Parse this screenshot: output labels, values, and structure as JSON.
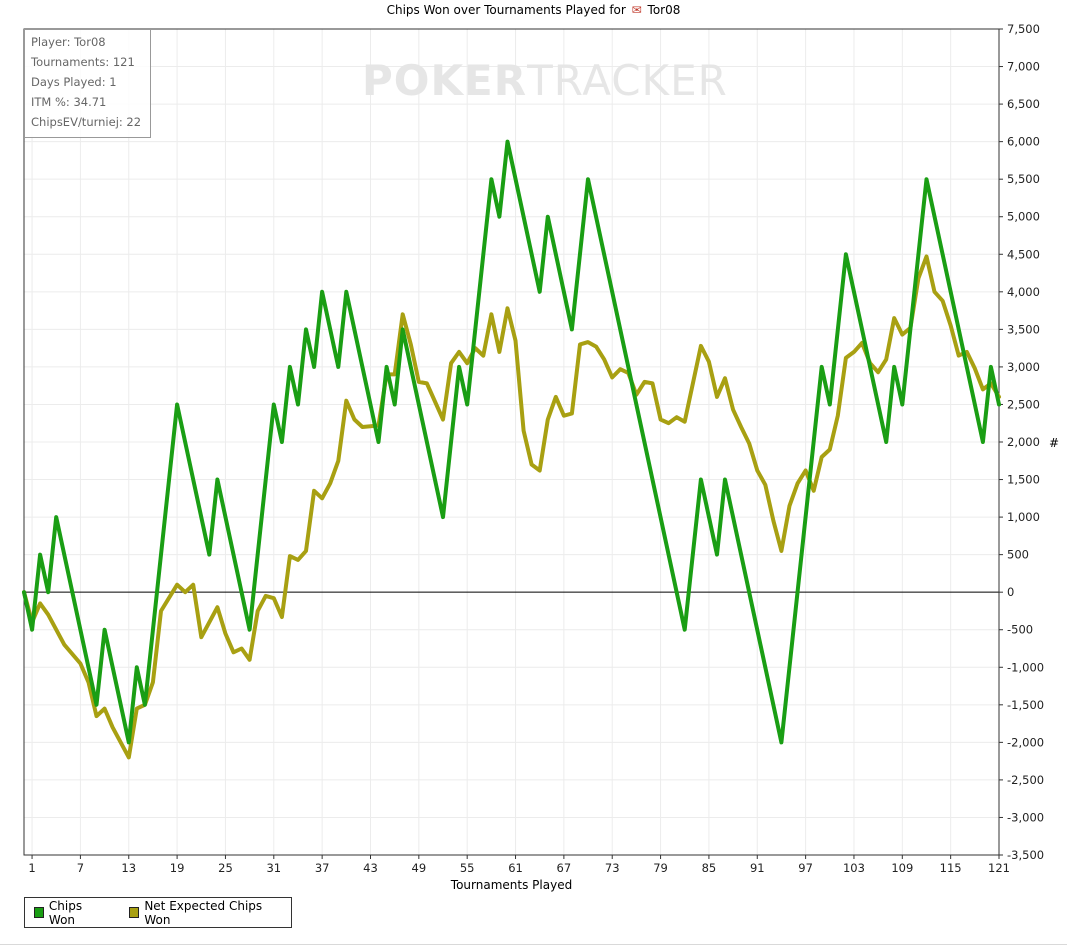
{
  "title": {
    "prefix": "Chips Won over Tournaments Played for",
    "player": "Tor08"
  },
  "stats_box": {
    "player": "Player: Tor08",
    "tournaments": "Tournaments: 121",
    "days": "Days Played: 1",
    "itm": "ITM %: 34.71",
    "chipsev": "ChipsEV/turniej: 22"
  },
  "watermark": {
    "part1": "POKER",
    "part2": "TRACKER"
  },
  "chart_data": {
    "type": "line",
    "xlabel": "Tournaments Played",
    "ylabel": "#",
    "xlim": [
      0,
      121
    ],
    "ylim": [
      -3500,
      7500
    ],
    "x_ticks": [
      1,
      7,
      13,
      19,
      25,
      31,
      37,
      43,
      49,
      55,
      61,
      67,
      73,
      79,
      85,
      91,
      97,
      103,
      109,
      115,
      121
    ],
    "y_ticks": [
      -3500,
      -3000,
      -2500,
      -2000,
      -1500,
      -1000,
      -500,
      0,
      500,
      1000,
      1500,
      2000,
      2500,
      3000,
      3500,
      4000,
      4500,
      5000,
      5500,
      6000,
      6500,
      7000,
      7500
    ],
    "y_tick_labels": [
      "-3,500",
      "-3,000",
      "-2,500",
      "-2,000",
      "-1,500",
      "-1,000",
      "-500",
      "0",
      "500",
      "1,000",
      "1,500",
      "2,000",
      "2,500",
      "3,000",
      "3,500",
      "4,000",
      "4,500",
      "5,000",
      "5,500",
      "6,000",
      "6,500",
      "7,000",
      "7,500"
    ],
    "grid": true,
    "legend_position": "bottom-left",
    "series": [
      {
        "name": "Chips Won",
        "color": "#1a9e14",
        "points": [
          [
            0,
            0
          ],
          [
            1,
            -500
          ],
          [
            2,
            500
          ],
          [
            3,
            0
          ],
          [
            4,
            1000
          ],
          [
            9,
            -1500
          ],
          [
            10,
            -500
          ],
          [
            13,
            -2000
          ],
          [
            14,
            -1000
          ],
          [
            15,
            -1500
          ],
          [
            19,
            2500
          ],
          [
            23,
            500
          ],
          [
            24,
            1500
          ],
          [
            28,
            -500
          ],
          [
            31,
            2500
          ],
          [
            32,
            2000
          ],
          [
            33,
            3000
          ],
          [
            34,
            2500
          ],
          [
            35,
            3500
          ],
          [
            36,
            3000
          ],
          [
            37,
            4000
          ],
          [
            39,
            3000
          ],
          [
            40,
            4000
          ],
          [
            44,
            2000
          ],
          [
            45,
            3000
          ],
          [
            46,
            2500
          ],
          [
            47,
            3500
          ],
          [
            52,
            1000
          ],
          [
            54,
            3000
          ],
          [
            55,
            2500
          ],
          [
            58,
            5500
          ],
          [
            59,
            5000
          ],
          [
            60,
            6000
          ],
          [
            64,
            4000
          ],
          [
            65,
            5000
          ],
          [
            68,
            3500
          ],
          [
            70,
            5500
          ],
          [
            82,
            -500
          ],
          [
            84,
            1500
          ],
          [
            86,
            500
          ],
          [
            87,
            1500
          ],
          [
            94,
            -2000
          ],
          [
            99,
            3000
          ],
          [
            100,
            2500
          ],
          [
            102,
            4500
          ],
          [
            107,
            2000
          ],
          [
            108,
            3000
          ],
          [
            109,
            2500
          ],
          [
            112,
            5500
          ],
          [
            119,
            2000
          ],
          [
            120,
            3000
          ],
          [
            121,
            2500
          ]
        ]
      },
      {
        "name": "Net Expected Chips Won",
        "color": "#a8a012",
        "points": [
          [
            0,
            0
          ],
          [
            1,
            -400
          ],
          [
            2,
            -150
          ],
          [
            3,
            -300
          ],
          [
            5,
            -700
          ],
          [
            7,
            -950
          ],
          [
            8,
            -1200
          ],
          [
            9,
            -1650
          ],
          [
            10,
            -1550
          ],
          [
            11,
            -1800
          ],
          [
            13,
            -2200
          ],
          [
            14,
            -1550
          ],
          [
            15,
            -1500
          ],
          [
            16,
            -1200
          ],
          [
            17,
            -250
          ],
          [
            19,
            100
          ],
          [
            20,
            0
          ],
          [
            21,
            100
          ],
          [
            22,
            -600
          ],
          [
            24,
            -200
          ],
          [
            25,
            -550
          ],
          [
            26,
            -800
          ],
          [
            27,
            -750
          ],
          [
            28,
            -900
          ],
          [
            29,
            -250
          ],
          [
            30,
            -50
          ],
          [
            31,
            -80
          ],
          [
            32,
            -330
          ],
          [
            33,
            480
          ],
          [
            34,
            430
          ],
          [
            35,
            550
          ],
          [
            36,
            1350
          ],
          [
            37,
            1250
          ],
          [
            38,
            1450
          ],
          [
            39,
            1750
          ],
          [
            40,
            2550
          ],
          [
            41,
            2300
          ],
          [
            42,
            2200
          ],
          [
            44,
            2220
          ],
          [
            45,
            2900
          ],
          [
            46,
            2900
          ],
          [
            47,
            3700
          ],
          [
            48,
            3300
          ],
          [
            49,
            2800
          ],
          [
            50,
            2780
          ],
          [
            52,
            2300
          ],
          [
            53,
            3050
          ],
          [
            54,
            3200
          ],
          [
            55,
            3050
          ],
          [
            56,
            3250
          ],
          [
            57,
            3150
          ],
          [
            58,
            3700
          ],
          [
            59,
            3200
          ],
          [
            60,
            3780
          ],
          [
            61,
            3350
          ],
          [
            62,
            2150
          ],
          [
            63,
            1700
          ],
          [
            64,
            1620
          ],
          [
            65,
            2300
          ],
          [
            66,
            2600
          ],
          [
            67,
            2350
          ],
          [
            68,
            2380
          ],
          [
            69,
            3300
          ],
          [
            70,
            3330
          ],
          [
            71,
            3270
          ],
          [
            72,
            3100
          ],
          [
            73,
            2860
          ],
          [
            74,
            2970
          ],
          [
            75,
            2920
          ],
          [
            76,
            2630
          ],
          [
            77,
            2800
          ],
          [
            78,
            2780
          ],
          [
            79,
            2300
          ],
          [
            80,
            2250
          ],
          [
            81,
            2330
          ],
          [
            82,
            2270
          ],
          [
            84,
            3280
          ],
          [
            85,
            3070
          ],
          [
            86,
            2600
          ],
          [
            87,
            2850
          ],
          [
            88,
            2430
          ],
          [
            89,
            2200
          ],
          [
            90,
            1980
          ],
          [
            91,
            1620
          ],
          [
            92,
            1430
          ],
          [
            93,
            950
          ],
          [
            94,
            550
          ],
          [
            95,
            1150
          ],
          [
            96,
            1450
          ],
          [
            97,
            1620
          ],
          [
            98,
            1350
          ],
          [
            99,
            1800
          ],
          [
            100,
            1900
          ],
          [
            101,
            2350
          ],
          [
            102,
            3120
          ],
          [
            103,
            3200
          ],
          [
            104,
            3320
          ],
          [
            105,
            3050
          ],
          [
            106,
            2930
          ],
          [
            107,
            3100
          ],
          [
            108,
            3650
          ],
          [
            109,
            3430
          ],
          [
            110,
            3520
          ],
          [
            111,
            4180
          ],
          [
            112,
            4470
          ],
          [
            113,
            4000
          ],
          [
            114,
            3880
          ],
          [
            115,
            3550
          ],
          [
            116,
            3150
          ],
          [
            117,
            3200
          ],
          [
            118,
            2980
          ],
          [
            119,
            2700
          ],
          [
            120,
            2780
          ],
          [
            121,
            2600
          ]
        ]
      }
    ]
  }
}
